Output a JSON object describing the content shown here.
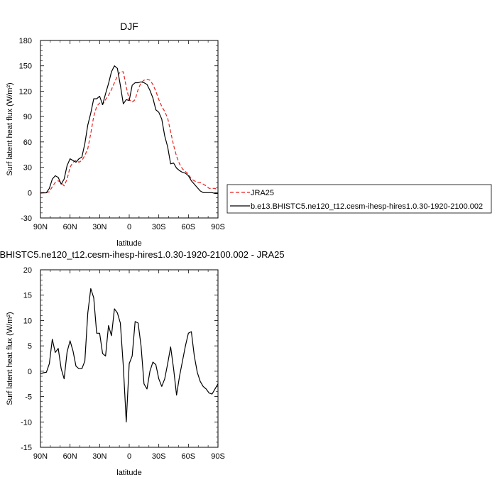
{
  "chart_data": [
    {
      "type": "line",
      "title": "DJF",
      "xlabel": "latitude",
      "ylabel": "Surf latent heat flux (W/m²)",
      "xlim": [
        90,
        -90
      ],
      "ylim": [
        -30,
        180
      ],
      "xticks": [
        90,
        60,
        30,
        0,
        -30,
        -60,
        -90
      ],
      "xtick_labels": [
        "90N",
        "60N",
        "30N",
        "0",
        "30S",
        "60S",
        "90S"
      ],
      "yticks": [
        -30,
        0,
        30,
        60,
        90,
        120,
        150,
        180
      ],
      "ytick_labels": [
        "-30",
        "0",
        "30",
        "60",
        "90",
        "120",
        "150",
        "180"
      ],
      "legend_position": "right, outside plot",
      "series": [
        {
          "name": "JRA25",
          "color": "#e8211f",
          "dash": "dashed",
          "x": [
            90,
            87,
            84,
            81,
            78,
            75,
            72,
            69,
            66,
            63,
            60,
            57,
            54,
            51,
            48,
            45,
            42,
            39,
            36,
            33,
            30,
            27,
            24,
            21,
            18,
            15,
            12,
            9,
            6,
            3,
            0,
            -3,
            -6,
            -9,
            -12,
            -15,
            -18,
            -21,
            -24,
            -27,
            -30,
            -33,
            -36,
            -39,
            -42,
            -45,
            -48,
            -51,
            -54,
            -57,
            -60,
            -63,
            -66,
            -69,
            -72,
            -75,
            -78,
            -81,
            -84,
            -87,
            -90
          ],
          "y": [
            0,
            0,
            0,
            1,
            7,
            12,
            14,
            12,
            8,
            16,
            30,
            36,
            38,
            36,
            38,
            44,
            52,
            70,
            90,
            102,
            106,
            104,
            110,
            115,
            122,
            130,
            138,
            143,
            143,
            125,
            110,
            107,
            110,
            122,
            130,
            133,
            134,
            133,
            128,
            120,
            110,
            102,
            96,
            88,
            72,
            56,
            43,
            34,
            28,
            25,
            22,
            16,
            14,
            12,
            12,
            10,
            8,
            5,
            5,
            5,
            3
          ]
        },
        {
          "name": "b.e13.BHISTC5.ne120_t12.cesm-ihesp-hires1.0.30-1920-2100.002",
          "color": "#000000",
          "dash": "solid",
          "x": [
            90,
            87,
            84,
            81,
            78,
            75,
            72,
            69,
            66,
            63,
            60,
            57,
            54,
            51,
            48,
            45,
            42,
            39,
            36,
            33,
            30,
            27,
            24,
            21,
            18,
            15,
            12,
            9,
            6,
            3,
            0,
            -3,
            -6,
            -9,
            -12,
            -15,
            -18,
            -21,
            -24,
            -27,
            -30,
            -33,
            -36,
            -39,
            -42,
            -45,
            -48,
            -51,
            -54,
            -57,
            -60,
            -63,
            -66,
            -69,
            -72,
            -75,
            -78,
            -81,
            -84,
            -87,
            -90
          ],
          "y": [
            -0.5,
            -0.3,
            -0.2,
            5,
            16,
            20,
            18,
            10,
            16,
            32,
            40,
            38,
            36,
            40,
            42,
            58,
            80,
            94,
            111,
            111,
            114,
            104,
            117,
            129,
            143,
            150,
            147,
            127,
            105,
            110,
            109,
            127,
            130,
            130,
            131,
            130,
            128,
            121,
            112,
            98,
            95,
            87,
            67,
            54,
            34,
            35,
            29,
            26,
            24,
            23,
            20,
            14,
            10,
            6,
            2,
            0,
            0,
            0,
            0,
            -1,
            -1
          ]
        }
      ]
    },
    {
      "type": "line",
      "title": "b.e13.BHISTC5.ne120_t12.cesm-ihesp-hires1.0.30-1920-2100.002 - JRA25",
      "xlabel": "latitude",
      "ylabel": "Surf latent heat flux (W/m²)",
      "xlim": [
        90,
        -90
      ],
      "ylim": [
        -15,
        20
      ],
      "xticks": [
        90,
        60,
        30,
        0,
        -30,
        -60,
        -90
      ],
      "xtick_labels": [
        "90N",
        "60N",
        "30N",
        "0",
        "30S",
        "60S",
        "90S"
      ],
      "yticks": [
        -15,
        -10,
        -5,
        0,
        5,
        10,
        15,
        20
      ],
      "ytick_labels": [
        "-15",
        "-10",
        "-5",
        "0",
        "5",
        "10",
        "15",
        "20"
      ],
      "series": [
        {
          "color": "#000000",
          "dash": "solid",
          "x": [
            90,
            87,
            84,
            81,
            78,
            75,
            72,
            69,
            66,
            63,
            60,
            57,
            54,
            51,
            48,
            45,
            42,
            39,
            36,
            33,
            30,
            27,
            24,
            21,
            18,
            15,
            12,
            9,
            6,
            3,
            0,
            -3,
            -6,
            -9,
            -12,
            -15,
            -18,
            -21,
            -24,
            -27,
            -30,
            -33,
            -36,
            -39,
            -42,
            -45,
            -48,
            -51,
            -54,
            -57,
            -60,
            -63,
            -66,
            -69,
            -72,
            -75,
            -78,
            -81,
            -84,
            -87,
            -90
          ],
          "y": [
            -0.5,
            -0.3,
            -0.2,
            1.5,
            6.3,
            3.7,
            4.5,
            0.5,
            -1.5,
            3.8,
            6,
            4,
            1,
            0.5,
            0.5,
            2,
            11.5,
            16.3,
            14.5,
            7.5,
            7.5,
            3.5,
            3,
            9,
            7,
            12.3,
            11.5,
            9.5,
            1,
            -10,
            1.5,
            3,
            9.8,
            9.5,
            5,
            -2.5,
            -3.5,
            0,
            1.8,
            1.3,
            -1.5,
            -3,
            -1.5,
            1.5,
            4.8,
            0.5,
            -4.7,
            -1,
            2,
            5,
            7.5,
            7.8,
            3,
            -0.2,
            -2,
            -3,
            -3.5,
            -4.3,
            -4.5,
            -3.5,
            -2.5
          ]
        }
      ]
    }
  ]
}
